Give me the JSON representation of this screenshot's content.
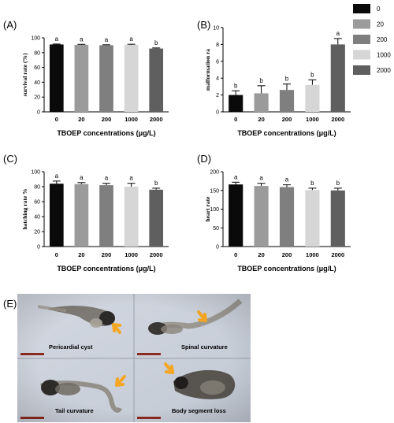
{
  "legend": {
    "entries": [
      "0",
      "20",
      "200",
      "1000",
      "2000"
    ],
    "colors": [
      "#0a0a0a",
      "#9b9b9b",
      "#7f7f7f",
      "#d6d6d6",
      "#5f5f5f"
    ]
  },
  "chart_data": [
    {
      "type": "bar",
      "panel": "(A)",
      "categories": [
        "0",
        "20",
        "200",
        "1000",
        "2000"
      ],
      "values": [
        91,
        90.5,
        90,
        90.5,
        85.5
      ],
      "errors": [
        0.6,
        0.7,
        0.6,
        0.8,
        0.8
      ],
      "letters": [
        "a",
        "a",
        "a",
        "a",
        "b"
      ],
      "ylabel": "survival rate (%)",
      "xlabel": "TBOEP concentrations (μg/L)",
      "ylim": [
        0,
        100
      ],
      "yticks": [
        "0",
        "20",
        "40",
        "60",
        "80",
        "100"
      ]
    },
    {
      "type": "bar",
      "panel": "(B)",
      "categories": [
        "0",
        "20",
        "200",
        "1000",
        "2000"
      ],
      "values": [
        2.0,
        2.2,
        2.6,
        3.2,
        8.0
      ],
      "errors": [
        0.5,
        0.9,
        0.7,
        0.6,
        0.7
      ],
      "letters": [
        "b",
        "b",
        "b",
        "b",
        "a"
      ],
      "ylabel": "malformation ra",
      "xlabel": "TBOEP concentrations (μg/L)",
      "ylim": [
        0,
        10
      ],
      "yticks": [
        "0",
        "2",
        "4",
        "6",
        "8",
        "10"
      ]
    },
    {
      "type": "bar",
      "panel": "(C)",
      "categories": [
        "0",
        "20",
        "200",
        "1000",
        "2000"
      ],
      "values": [
        84,
        83.5,
        82,
        80,
        76
      ],
      "errors": [
        3.5,
        2.0,
        2.5,
        4.5,
        2.0
      ],
      "letters": [
        "a",
        "a",
        "a",
        "a",
        "b"
      ],
      "ylabel": "hatching rate %",
      "xlabel": "TBOEP concentrations (μg/L)",
      "ylim": [
        0,
        100
      ],
      "yticks": [
        "0",
        "20",
        "40",
        "60",
        "80",
        "100"
      ]
    },
    {
      "type": "bar",
      "panel": "(D)",
      "categories": [
        "0",
        "20",
        "200",
        "1000",
        "2000"
      ],
      "values": [
        166,
        162,
        159,
        151,
        150
      ],
      "errors": [
        6,
        7,
        6,
        5,
        6
      ],
      "letters": [
        "a",
        "a",
        "a",
        "b",
        "b"
      ],
      "ylabel": "heart rate",
      "xlabel": "TBOEP concentrations (μg/L)",
      "ylim": [
        0,
        200
      ],
      "yticks": [
        "0",
        "50",
        "100",
        "150",
        "200"
      ]
    }
  ],
  "photos": {
    "panel": "(E)",
    "captions": [
      "Pericardial cyst",
      "Spinal curvature",
      "Tail curvature",
      "Body segment loss"
    ]
  }
}
